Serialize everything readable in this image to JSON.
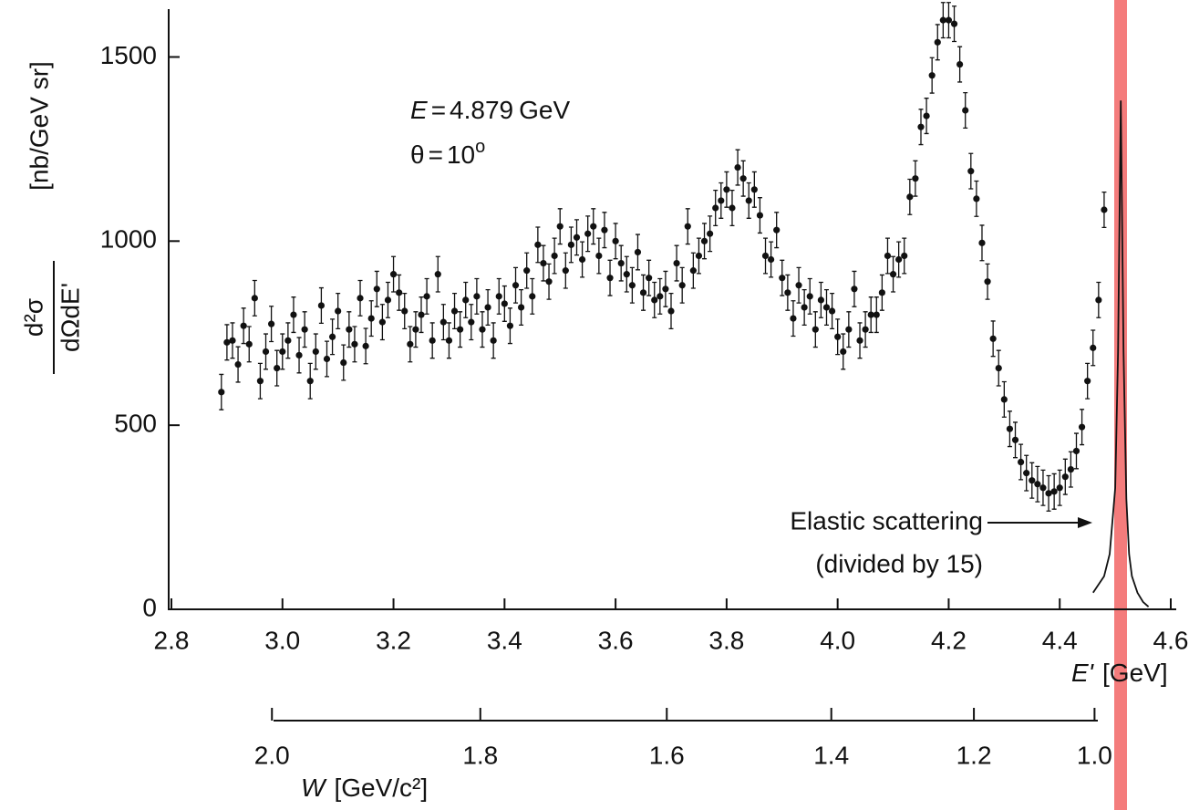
{
  "chart_data": {
    "type": "scatter",
    "xlim": [
      2.8,
      4.6
    ],
    "ylim": [
      0,
      1630
    ],
    "xticks": [
      2.8,
      {
        "value": 3.0,
        "label": "3.0"
      },
      3.2,
      3.4,
      3.6,
      3.8,
      {
        "value": 4.0,
        "label": "4.0"
      },
      4.2,
      4.4,
      4.6
    ],
    "yticks": [
      0,
      500,
      1000,
      1500
    ],
    "x_label": {
      "symbol": "E'",
      "unit": "[GeV]"
    },
    "y_label": {
      "numerator": "d²σ",
      "denominator": "dΩdE'",
      "unit": "[nb/GeV sr]"
    },
    "w_axis": {
      "label": {
        "symbol": "W",
        "unit": "[GeV/c²]"
      },
      "ticks": [
        {
          "value": 2.0,
          "label": "2.0"
        },
        1.8,
        1.6,
        1.4,
        1.2,
        {
          "value": 1.0,
          "label": "1.0"
        }
      ]
    },
    "annotations": [
      {
        "symbol": "E",
        "relation": "=",
        "value": 4.879,
        "unit": "GeV"
      },
      {
        "symbol": "θ",
        "relation": "=",
        "value": 10,
        "unit": "o"
      }
    ],
    "elastic_note": [
      "Elastic scattering",
      "(divided by 15)"
    ],
    "series": [
      {
        "color": "#111111",
        "error": 48,
        "x": [
          2.89,
          2.9,
          2.91,
          2.92,
          2.93,
          2.94,
          2.95,
          2.96,
          2.97,
          2.98,
          2.99,
          3.0,
          3.01,
          3.02,
          3.03,
          3.04,
          3.05,
          3.06,
          3.07,
          3.08,
          3.09,
          3.1,
          3.11,
          3.12,
          3.13,
          3.14,
          3.15,
          3.16,
          3.17,
          3.18,
          3.19,
          3.2,
          3.21,
          3.22,
          3.23,
          3.24,
          3.25,
          3.26,
          3.27,
          3.28,
          3.29,
          3.3,
          3.31,
          3.32,
          3.33,
          3.34,
          3.35,
          3.36,
          3.37,
          3.38,
          3.39,
          3.4,
          3.41,
          3.42,
          3.43,
          3.44,
          3.45,
          3.46,
          3.47,
          3.48,
          3.49,
          3.5,
          3.51,
          3.52,
          3.53,
          3.54,
          3.55,
          3.56,
          3.57,
          3.58,
          3.59,
          3.6,
          3.61,
          3.62,
          3.63,
          3.64,
          3.65,
          3.66,
          3.67,
          3.68,
          3.69,
          3.7,
          3.71,
          3.72,
          3.73,
          3.74,
          3.75,
          3.76,
          3.77,
          3.78,
          3.79,
          3.8,
          3.81,
          3.82,
          3.83,
          3.84,
          3.85,
          3.86,
          3.87,
          3.88,
          3.89,
          3.9,
          3.91,
          3.92,
          3.93,
          3.94,
          3.95,
          3.96,
          3.97,
          3.98,
          3.99,
          4.0,
          4.01,
          4.02,
          4.03,
          4.04,
          4.05,
          4.06,
          4.07,
          4.08,
          4.09,
          4.1,
          4.11,
          4.12,
          4.13,
          4.14,
          4.15,
          4.16,
          4.17,
          4.18,
          4.19,
          4.2,
          4.21,
          4.22,
          4.23,
          4.24,
          4.25,
          4.26,
          4.27,
          4.28,
          4.29,
          4.3,
          4.31,
          4.32,
          4.33,
          4.34,
          4.35,
          4.36,
          4.37,
          4.38,
          4.39,
          4.4,
          4.41,
          4.42,
          4.43,
          4.44,
          4.45,
          4.46,
          4.47,
          4.48
        ],
        "values": [
          590,
          725,
          730,
          665,
          770,
          720,
          845,
          620,
          700,
          775,
          655,
          700,
          730,
          800,
          690,
          760,
          620,
          700,
          825,
          680,
          740,
          810,
          670,
          760,
          720,
          845,
          715,
          790,
          870,
          780,
          840,
          910,
          860,
          810,
          720,
          760,
          800,
          850,
          730,
          910,
          780,
          730,
          810,
          760,
          840,
          780,
          850,
          760,
          820,
          730,
          850,
          830,
          770,
          880,
          820,
          920,
          850,
          990,
          940,
          890,
          960,
          1040,
          920,
          990,
          1010,
          950,
          1020,
          1040,
          960,
          1030,
          900,
          1000,
          940,
          910,
          880,
          970,
          860,
          900,
          840,
          850,
          870,
          810,
          940,
          880,
          1040,
          920,
          960,
          1000,
          1020,
          1090,
          1110,
          1140,
          1090,
          1200,
          1170,
          1110,
          1140,
          1070,
          960,
          950,
          1030,
          900,
          860,
          790,
          880,
          820,
          850,
          760,
          840,
          820,
          810,
          740,
          700,
          760,
          870,
          730,
          760,
          800,
          800,
          860,
          960,
          910,
          950,
          960,
          1120,
          1170,
          1310,
          1340,
          1450,
          1540,
          1600,
          1600,
          1590,
          1480,
          1355,
          1190,
          1115,
          995,
          890,
          735,
          655,
          570,
          490,
          460,
          400,
          370,
          350,
          340,
          330,
          315,
          320,
          330,
          360,
          380,
          430,
          495,
          620,
          710,
          840,
          1085
        ]
      },
      {
        "color": "#111111",
        "x": [
          4.46,
          4.48,
          4.49,
          4.5,
          4.505,
          4.51,
          4.515,
          4.52,
          4.525,
          4.53,
          4.54,
          4.55,
          4.56
        ],
        "values": [
          45,
          90,
          150,
          330,
          700,
          1380,
          700,
          300,
          150,
          90,
          45,
          20,
          7
        ]
      }
    ]
  }
}
